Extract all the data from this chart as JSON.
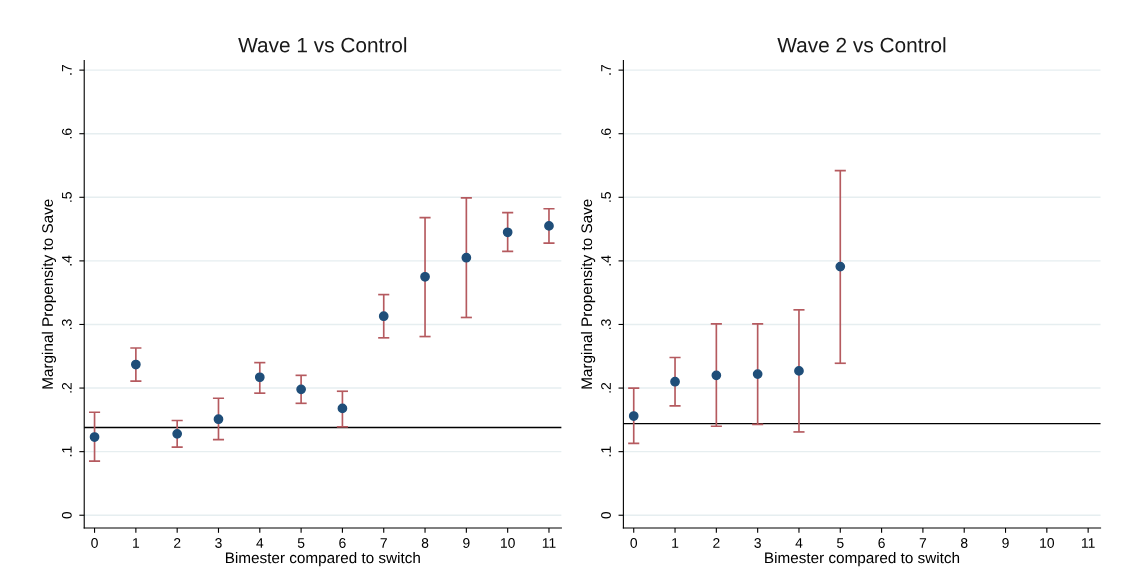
{
  "chart_data": [
    {
      "type": "scatter",
      "title": "Wave 1 vs Control",
      "xlabel": "Bimester compared to switch",
      "ylabel": "Marginal Propensity to Save",
      "x": [
        0,
        1,
        2,
        3,
        4,
        5,
        6,
        7,
        8,
        9,
        10,
        11
      ],
      "series": [
        {
          "color": "#1f4e79",
          "values": [
            0.123,
            0.237,
            0.128,
            0.151,
            0.217,
            0.198,
            0.168,
            0.313,
            0.375,
            0.405,
            0.445,
            0.455
          ],
          "errors": [
            [
              0.085,
              0.162
            ],
            [
              0.211,
              0.263
            ],
            [
              0.107,
              0.149
            ],
            [
              0.119,
              0.184
            ],
            [
              0.192,
              0.24
            ],
            [
              0.176,
              0.22
            ],
            [
              0.139,
              0.195
            ],
            [
              0.279,
              0.347
            ],
            [
              0.281,
              0.468
            ],
            [
              0.311,
              0.499
            ],
            [
              0.415,
              0.476
            ],
            [
              0.428,
              0.482
            ]
          ]
        }
      ],
      "xlim": [
        -0.25,
        11.3
      ],
      "ylim": [
        -0.02,
        0.715
      ],
      "xticks": [
        0,
        1,
        2,
        3,
        4,
        5,
        6,
        7,
        8,
        9,
        10,
        11
      ],
      "yticks": [
        {
          "value": 0,
          "label": "0"
        },
        {
          "value": 0.1,
          "label": ".1"
        },
        {
          "value": 0.2,
          "label": ".2"
        },
        {
          "value": 0.3,
          "label": ".3"
        },
        {
          "value": 0.4,
          "label": ".4"
        },
        {
          "value": 0.5,
          "label": ".5"
        },
        {
          "value": 0.6,
          "label": ".6"
        },
        {
          "value": 0.7,
          "label": ".7"
        }
      ],
      "ref_lines": [
        {
          "axis": "y",
          "value": 0.138,
          "color": "#000000"
        }
      ],
      "grid": "y",
      "marker": "circle"
    },
    {
      "type": "scatter",
      "title": "Wave 2 vs Control",
      "xlabel": "Bimester compared to switch",
      "ylabel": "Marginal Propensity to Save",
      "x": [
        0,
        1,
        2,
        3,
        4,
        5
      ],
      "series": [
        {
          "color": "#1f4e79",
          "values": [
            0.156,
            0.21,
            0.22,
            0.222,
            0.227,
            0.391
          ],
          "errors": [
            [
              0.113,
              0.2
            ],
            [
              0.172,
              0.248
            ],
            [
              0.14,
              0.301
            ],
            [
              0.143,
              0.301
            ],
            [
              0.131,
              0.323
            ],
            [
              0.239,
              0.542
            ]
          ]
        }
      ],
      "xlim": [
        -0.25,
        11.3
      ],
      "ylim": [
        -0.02,
        0.715
      ],
      "xticks": [
        0,
        1,
        2,
        3,
        4,
        5,
        6,
        7,
        8,
        9,
        10,
        11
      ],
      "yticks": [
        {
          "value": 0,
          "label": "0"
        },
        {
          "value": 0.1,
          "label": ".1"
        },
        {
          "value": 0.2,
          "label": ".2"
        },
        {
          "value": 0.3,
          "label": ".3"
        },
        {
          "value": 0.4,
          "label": ".4"
        },
        {
          "value": 0.5,
          "label": ".5"
        },
        {
          "value": 0.6,
          "label": ".6"
        },
        {
          "value": 0.7,
          "label": ".7"
        }
      ],
      "ref_lines": [
        {
          "axis": "y",
          "value": 0.144,
          "color": "#000000"
        }
      ],
      "grid": "y",
      "marker": "circle"
    }
  ]
}
